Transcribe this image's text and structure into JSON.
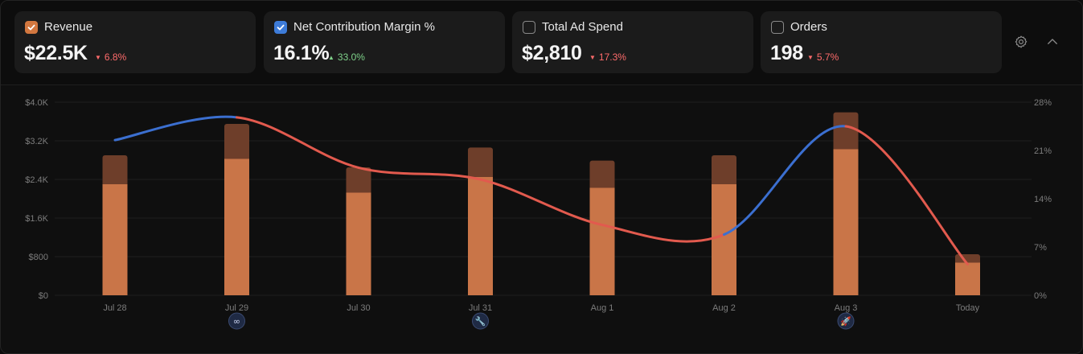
{
  "metrics": [
    {
      "label": "Revenue",
      "value": "$22.5K",
      "delta": "6.8%",
      "direction": "down",
      "checked": true,
      "check_color": "#d2773f"
    },
    {
      "label": "Net Contribution Margin %",
      "value": "16.1%",
      "delta": "33.0%",
      "direction": "up",
      "checked": true,
      "check_color": "#3d7bd8"
    },
    {
      "label": "Total Ad Spend",
      "value": "$2,810",
      "delta": "17.3%",
      "direction": "down",
      "checked": false,
      "check_color": ""
    },
    {
      "label": "Orders",
      "value": "198",
      "delta": "5.7%",
      "direction": "down",
      "checked": false,
      "check_color": ""
    }
  ],
  "header_icons": {
    "settings": "gear-icon",
    "collapse": "chevron-up-icon"
  },
  "colors": {
    "bar_base": "#c97548",
    "bar_top": "#6e3e2a",
    "line_up": "#3b6fd0",
    "line_down": "#e25a4e",
    "grid": "#1f1f1f",
    "axis_text": "#7c7c7c"
  },
  "chart_data": {
    "type": "bar",
    "categories": [
      "Jul 28",
      "Jul 29",
      "Jul 30",
      "Jul 31",
      "Aug 1",
      "Aug 2",
      "Aug 3",
      "Today"
    ],
    "series": [
      {
        "name": "Revenue",
        "values": [
          2300,
          2830,
          2130,
          2450,
          2230,
          2300,
          3030,
          680
        ]
      },
      {
        "name": "Revenue",
        "values": [
          600,
          720,
          520,
          610,
          560,
          600,
          760,
          170
        ]
      }
    ],
    "line": {
      "name": "Net Contribution Margin %",
      "axis": "right",
      "values": [
        22.5,
        25.8,
        18.5,
        16.8,
        10.2,
        8.8,
        24.5,
        4.5
      ]
    },
    "y_left": {
      "ticks": [
        "$0",
        "$800",
        "$1.6K",
        "$2.4K",
        "$3.2K",
        "$4.0K"
      ],
      "ylim": [
        0,
        4000
      ]
    },
    "y_right": {
      "ticks": [
        "0%",
        "7%",
        "14%",
        "21%",
        "28%"
      ],
      "ylim": [
        0,
        28
      ]
    },
    "grid": true,
    "annotations": [
      {
        "category": "Jul 29",
        "icon": "meta-icon",
        "glyph": "∞"
      },
      {
        "category": "Jul 31",
        "icon": "wrench-icon",
        "glyph": "🔧"
      },
      {
        "category": "Aug 3",
        "icon": "rocket-icon",
        "glyph": "🚀"
      }
    ]
  }
}
